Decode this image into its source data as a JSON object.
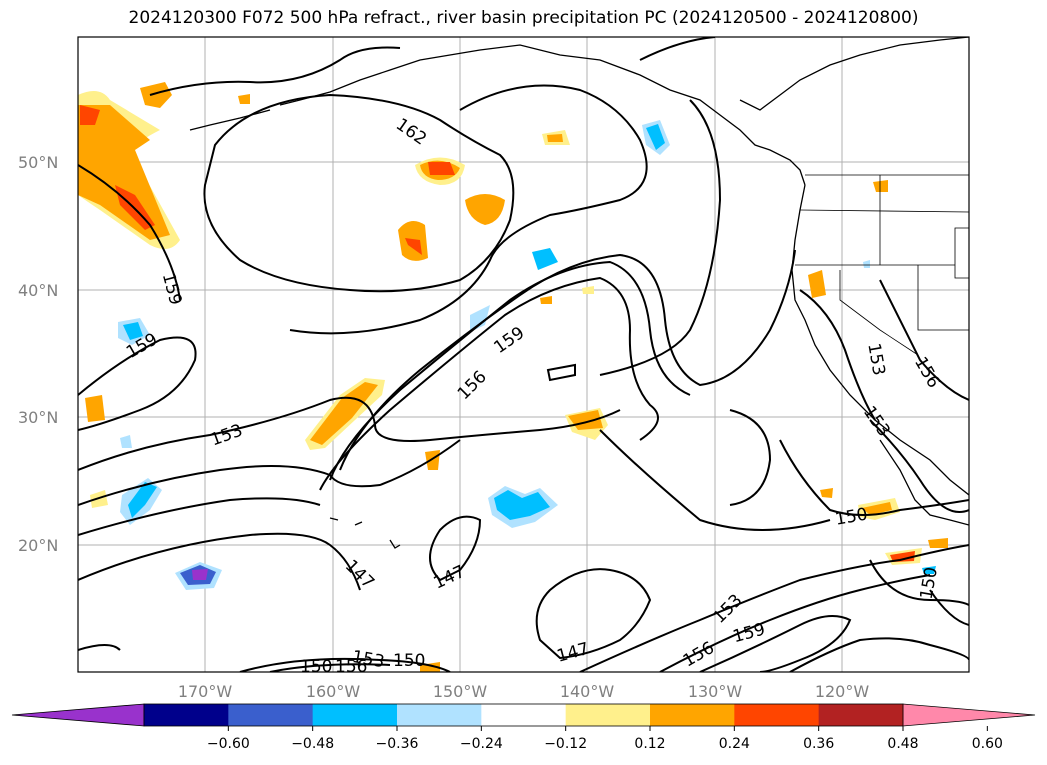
{
  "title": "2024120300 F072 500 hPa refract., river basin precipitation PC (2024120500 - 2024120800)",
  "lat_labels": [
    "50°N",
    "40°N",
    "30°N",
    "20°N"
  ],
  "lon_labels": [
    "170°W",
    "160°W",
    "150°W",
    "140°W",
    "130°W",
    "120°W"
  ],
  "contour_labels": [
    "162",
    "159",
    "159",
    "159",
    "156",
    "153",
    "153",
    "153",
    "156",
    "150",
    "150",
    "150",
    "147",
    "147",
    "147",
    "153",
    "156",
    "159",
    "156",
    "153",
    "150"
  ],
  "colorbar": {
    "ticks": [
      "−0.60",
      "−0.48",
      "−0.36",
      "−0.24",
      "−0.12",
      "0.12",
      "0.24",
      "0.36",
      "0.48",
      "0.60"
    ],
    "colors": [
      "#9932cc",
      "#00008b",
      "#3a5fcd",
      "#00bfff",
      "#b0e2ff",
      "#ffffff",
      "#fff08c",
      "#ffa500",
      "#ff4500",
      "#b22222",
      "#ff88aa"
    ]
  },
  "colors": {
    "grid": "#b0b0b0",
    "contour": "#000000",
    "tick_label": "#808080"
  }
}
